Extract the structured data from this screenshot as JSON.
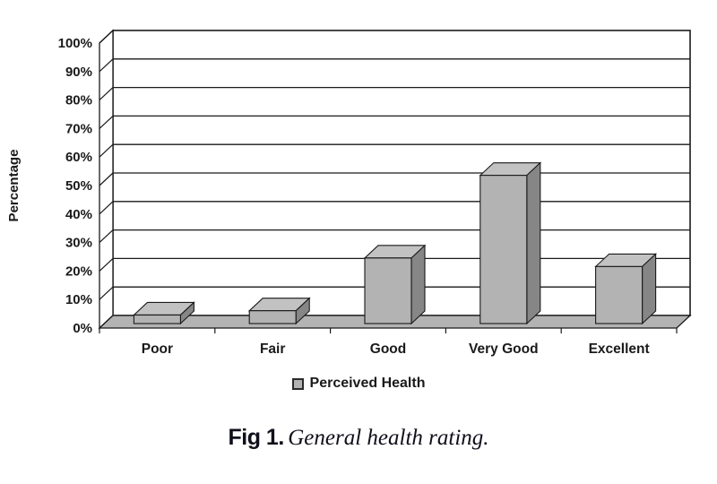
{
  "figure": {
    "caption_label": "Fig 1.",
    "caption_text": "General health rating."
  },
  "legend": {
    "items": [
      {
        "label": "Perceived Health",
        "swatch_color": "#b3b3b3"
      }
    ]
  },
  "chart_data": {
    "type": "bar",
    "style": "3d-column",
    "title": "",
    "categories": [
      "Poor",
      "Fair",
      "Good",
      "Very Good",
      "Excellent"
    ],
    "series": [
      {
        "name": "Perceived Health",
        "values": [
          3,
          4.5,
          23,
          52,
          20
        ]
      }
    ],
    "xlabel": "",
    "ylabel": "Percentage",
    "ylim": [
      0,
      100
    ],
    "yticks": [
      0,
      10,
      20,
      30,
      40,
      50,
      60,
      70,
      80,
      90,
      100
    ],
    "ytick_suffix": "%",
    "grid": true,
    "legend_position": "bottom",
    "colors": {
      "wall": "#ffffff",
      "floor": "#b3b3b3",
      "bar_front": "#b3b3b3",
      "bar_top": "#c2c2c2",
      "bar_side": "#868686",
      "line": "#1a1a1a",
      "text": "#1a1a1a"
    }
  }
}
